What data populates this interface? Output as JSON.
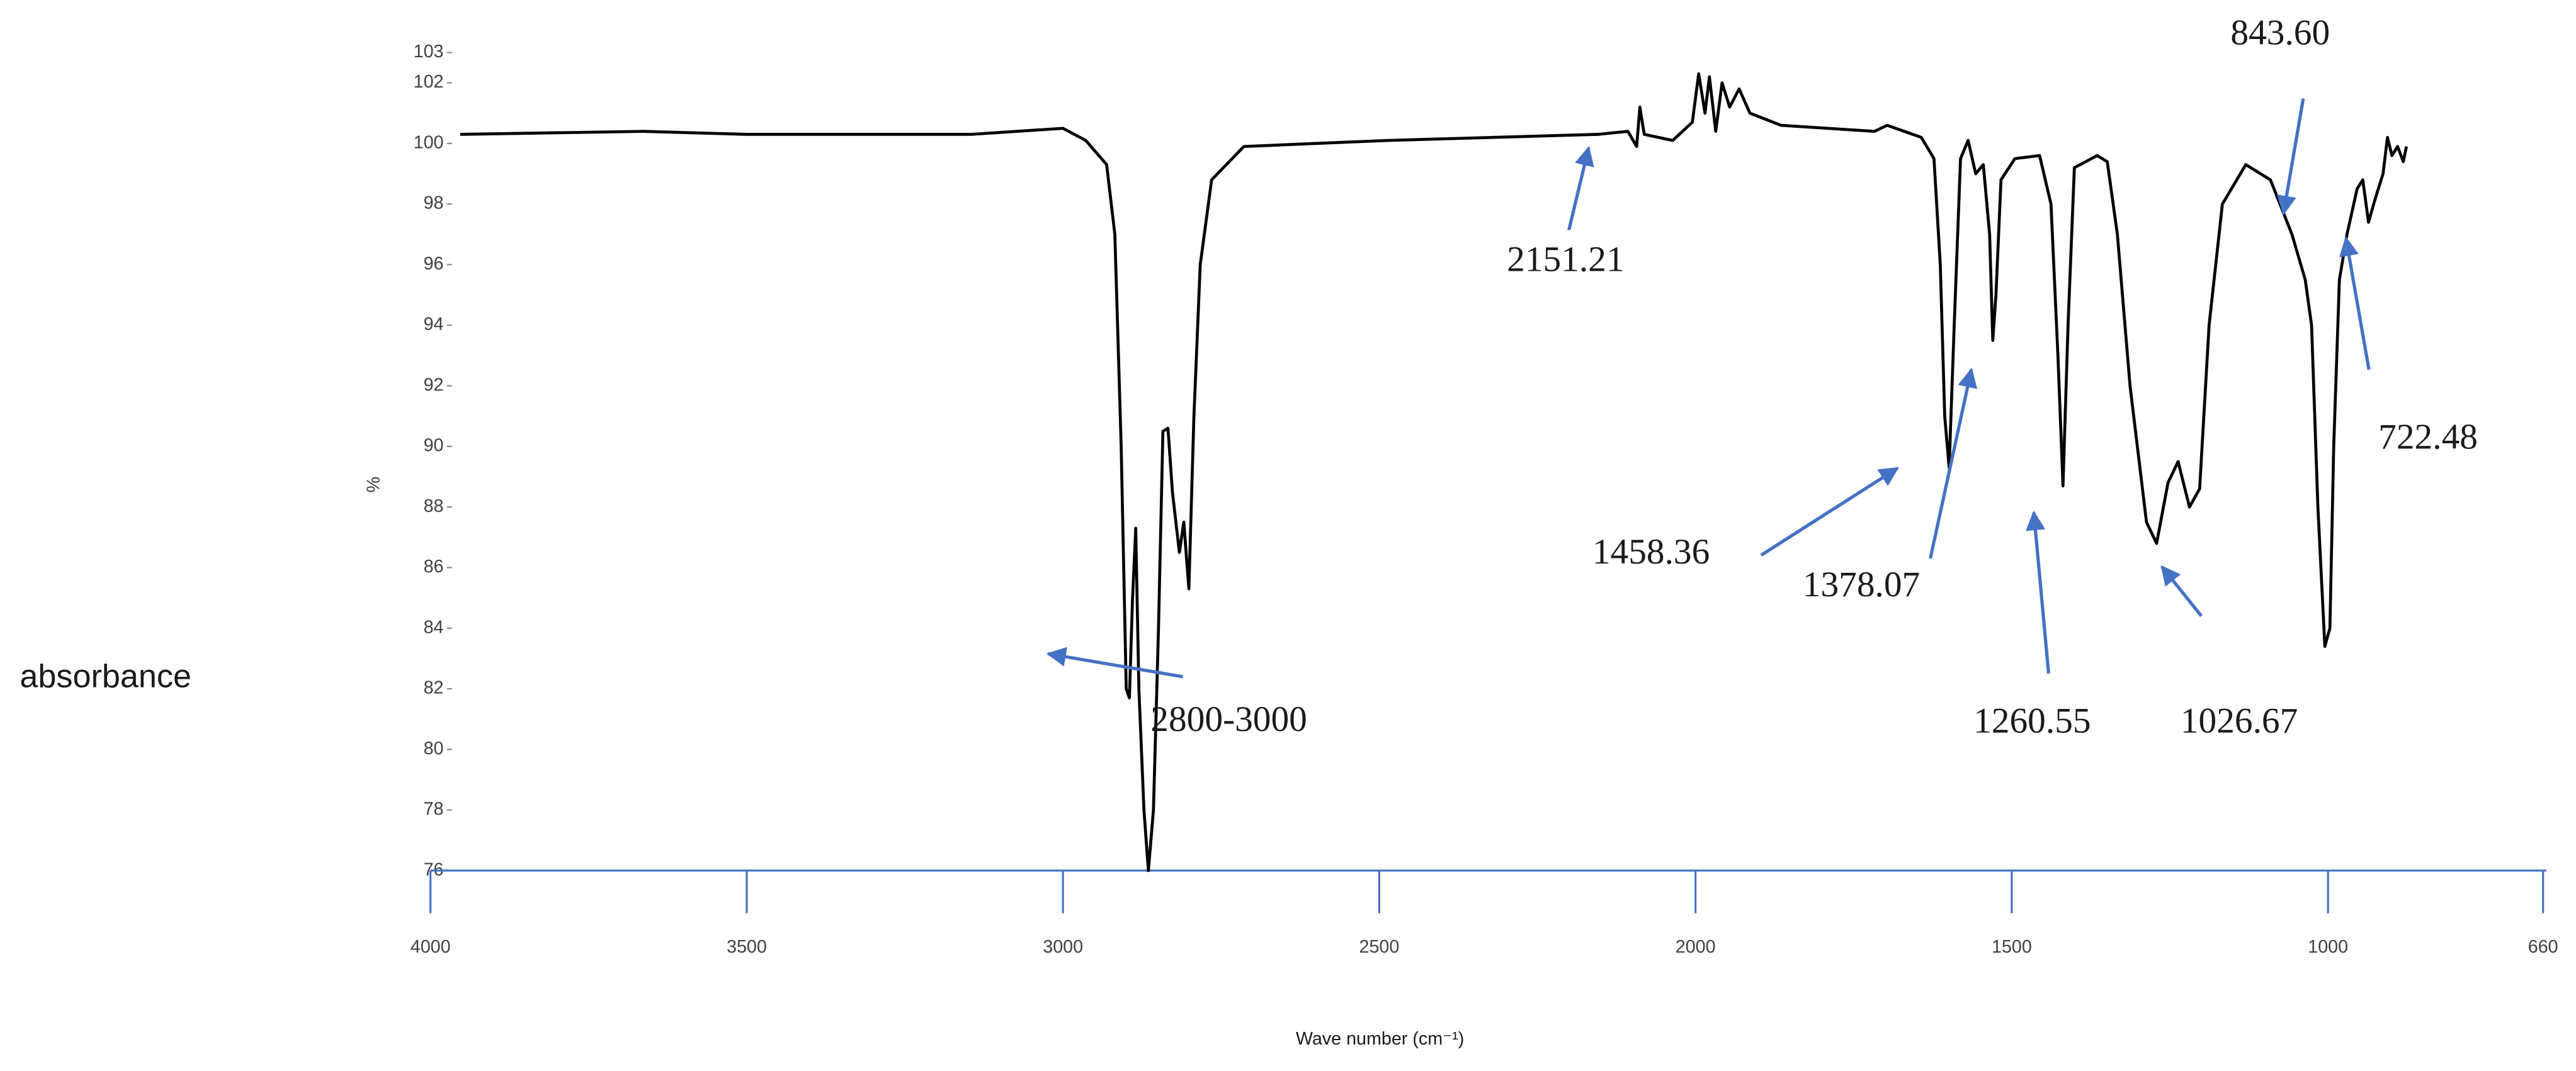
{
  "chart_data": {
    "type": "line",
    "x_label": "Wave number (cm⁻¹)",
    "y_label": "%",
    "left_label": "absorbance",
    "color": "#000000",
    "axis_color": "#4472c4",
    "annotation_color": "#4472c4",
    "xlim": [
      4000,
      660
    ],
    "ylim": [
      76,
      103
    ],
    "xticks": [
      4000,
      3500,
      3000,
      2500,
      2000,
      1500,
      1000,
      660
    ],
    "yticks": [
      76,
      78,
      80,
      82,
      84,
      86,
      88,
      90,
      92,
      94,
      96,
      98,
      100,
      102,
      103
    ],
    "annotations": [
      "843.60",
      "2151.21",
      "1458.36",
      "1378.07",
      "1260.55",
      "1026.67",
      "722.48",
      "2800-3000"
    ],
    "x": [
      3953,
      3663,
      3500,
      3146,
      3000,
      2964,
      2931,
      2918,
      2908,
      2900,
      2895,
      2890,
      2885,
      2880,
      2872,
      2865,
      2857,
      2849,
      2842,
      2834,
      2827,
      2816,
      2809,
      2801,
      2793,
      2783,
      2765,
      2714,
      2486,
      2154,
      2107,
      2093,
      2088,
      2081,
      2036,
      2005,
      1995,
      1985,
      1978,
      1968,
      1958,
      1946,
      1931,
      1914,
      1865,
      1717,
      1697,
      1643,
      1623,
      1613,
      1606,
      1599,
      1591,
      1581,
      1569,
      1557,
      1545,
      1535,
      1530,
      1525,
      1517,
      1495,
      1456,
      1438,
      1427,
      1419,
      1411,
      1401,
      1365,
      1349,
      1333,
      1313,
      1287,
      1271,
      1253,
      1237,
      1219,
      1203,
      1188,
      1167,
      1130,
      1091,
      1057,
      1036,
      1026,
      1016,
      1005,
      997,
      991,
      982,
      970,
      954,
      945,
      936,
      925,
      913,
      906,
      899,
      890,
      881,
      876
    ],
    "values": [
      100.3,
      100.4,
      100.3,
      100.3,
      100.5,
      100.1,
      99.3,
      97,
      90,
      82,
      81.7,
      85,
      87.3,
      82,
      78,
      76,
      78,
      84,
      90.5,
      90.6,
      88.5,
      86.5,
      87.5,
      85.3,
      91,
      96,
      98.8,
      99.9,
      100.1,
      100.3,
      100.4,
      99.9,
      101.2,
      100.3,
      100.1,
      100.7,
      102.3,
      101,
      102.2,
      100.4,
      102,
      101.2,
      101.8,
      101,
      100.6,
      100.4,
      100.6,
      100.2,
      99.5,
      96,
      91,
      89.3,
      94,
      99.5,
      100.1,
      99,
      99.3,
      97,
      93.5,
      95,
      98.8,
      99.5,
      99.6,
      98,
      93,
      88.7,
      94,
      99.2,
      99.6,
      99.4,
      97,
      92,
      87.5,
      86.8,
      88.8,
      89.5,
      88,
      88.6,
      94,
      98,
      99.3,
      98.8,
      97,
      95.5,
      94,
      88,
      83.4,
      84,
      90,
      95.5,
      97,
      98.5,
      98.8,
      97.4,
      98.2,
      99,
      100.2,
      99.6,
      99.9,
      99.4,
      99.9
    ]
  }
}
